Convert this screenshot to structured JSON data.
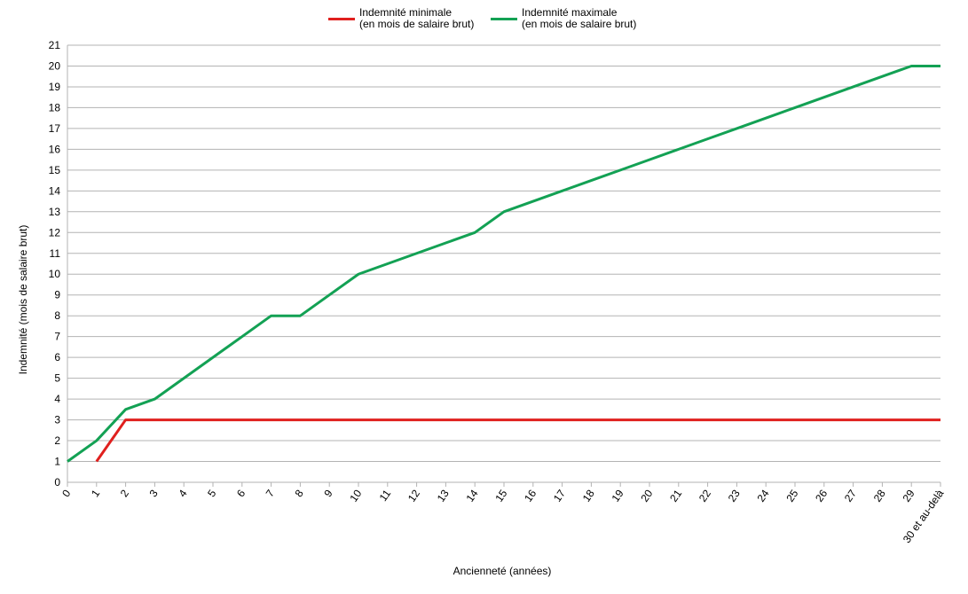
{
  "chart_data": {
    "type": "line",
    "categories": [
      "0",
      "1",
      "2",
      "3",
      "4",
      "5",
      "6",
      "7",
      "8",
      "9",
      "10",
      "11",
      "12",
      "13",
      "14",
      "15",
      "16",
      "17",
      "18",
      "19",
      "20",
      "21",
      "22",
      "23",
      "24",
      "25",
      "26",
      "27",
      "28",
      "29",
      "30 et au-delà"
    ],
    "series": [
      {
        "name": "Indemnité minimale\n(en mois de salaire brut)",
        "color": "#e0201e",
        "values": [
          null,
          1,
          3,
          3,
          3,
          3,
          3,
          3,
          3,
          3,
          3,
          3,
          3,
          3,
          3,
          3,
          3,
          3,
          3,
          3,
          3,
          3,
          3,
          3,
          3,
          3,
          3,
          3,
          3,
          3,
          3
        ]
      },
      {
        "name": "Indemnité maximale\n(en mois de salaire brut)",
        "color": "#13a154",
        "values": [
          1,
          2,
          3.5,
          4,
          5,
          6,
          7,
          8,
          8,
          9,
          10,
          10.5,
          11,
          11.5,
          12,
          13,
          13.5,
          14,
          14.5,
          15,
          15.5,
          16,
          16.5,
          17,
          17.5,
          18,
          18.5,
          19,
          19.5,
          20,
          20
        ]
      }
    ],
    "ylim": [
      0,
      21
    ],
    "yticks": [
      0,
      1,
      2,
      3,
      4,
      5,
      6,
      7,
      8,
      9,
      10,
      11,
      12,
      13,
      14,
      15,
      16,
      17,
      18,
      19,
      20,
      21
    ],
    "y_label": "Indemnité (mois de salaire brut)",
    "x_label": "Ancienneté (années)",
    "grid": true,
    "legend": "top"
  }
}
